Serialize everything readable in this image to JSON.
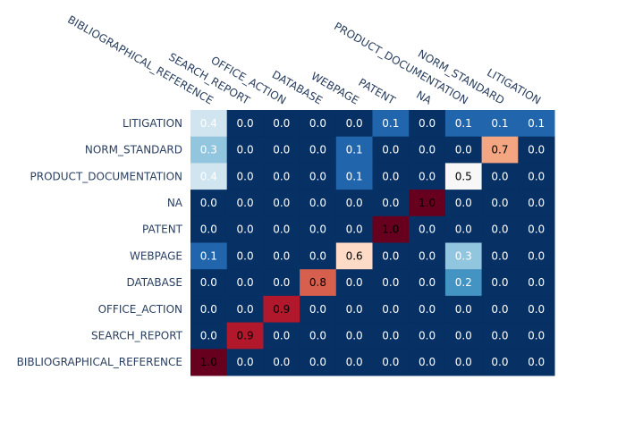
{
  "chart_data": {
    "type": "heatmap",
    "title": "",
    "xlabel": "",
    "ylabel": "",
    "x_categories": [
      "BIBLIOGRAPHICAL_REFERENCE",
      "SEARCH_REPORT",
      "OFFICE_ACTION",
      "DATABASE",
      "WEBPAGE",
      "PATENT",
      "NA",
      "PRODUCT_DOCUMENTATION",
      "NORM_STANDARD",
      "LITIGATION"
    ],
    "y_categories": [
      "LITIGATION",
      "NORM_STANDARD",
      "PRODUCT_DOCUMENTATION",
      "NA",
      "PATENT",
      "WEBPAGE",
      "DATABASE",
      "OFFICE_ACTION",
      "SEARCH_REPORT",
      "BIBLIOGRAPHICAL_REFERENCE"
    ],
    "values": [
      [
        0.4,
        0.0,
        0.0,
        0.0,
        0.0,
        0.1,
        0.0,
        0.1,
        0.1,
        0.1
      ],
      [
        0.3,
        0.0,
        0.0,
        0.0,
        0.1,
        0.0,
        0.0,
        0.0,
        0.7,
        0.0
      ],
      [
        0.4,
        0.0,
        0.0,
        0.0,
        0.1,
        0.0,
        0.0,
        0.5,
        0.0,
        0.0
      ],
      [
        0.0,
        0.0,
        0.0,
        0.0,
        0.0,
        0.0,
        1.0,
        0.0,
        0.0,
        0.0
      ],
      [
        0.0,
        0.0,
        0.0,
        0.0,
        0.0,
        1.0,
        0.0,
        0.0,
        0.0,
        0.0
      ],
      [
        0.1,
        0.0,
        0.0,
        0.0,
        0.6,
        0.0,
        0.0,
        0.3,
        0.0,
        0.0
      ],
      [
        0.0,
        0.0,
        0.0,
        0.8,
        0.0,
        0.0,
        0.0,
        0.2,
        0.0,
        0.0
      ],
      [
        0.0,
        0.0,
        0.9,
        0.0,
        0.0,
        0.0,
        0.0,
        0.0,
        0.0,
        0.0
      ],
      [
        0.0,
        0.9,
        0.0,
        0.0,
        0.0,
        0.0,
        0.0,
        0.0,
        0.0,
        0.0
      ],
      [
        1.0,
        0.0,
        0.0,
        0.0,
        0.0,
        0.0,
        0.0,
        0.0,
        0.0,
        0.0
      ]
    ],
    "value_range": [
      0,
      1
    ],
    "colorscale": "RdBu (reversed)",
    "grid": false,
    "legend": "none",
    "x_axis_position": "top"
  }
}
